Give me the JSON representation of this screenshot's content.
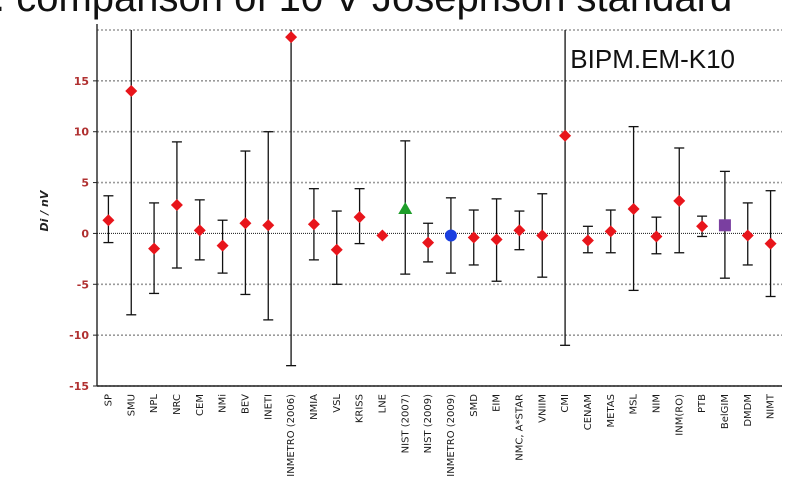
{
  "slide": {
    "title": ". comparison of 10 V Josephson standard"
  },
  "chart_data": {
    "type": "scatter",
    "title": "",
    "annotation": "BIPM.EM-K10",
    "xlabel": "",
    "ylabel": "Di / nV",
    "ylim": [
      -15,
      20
    ],
    "yticks": [
      -15,
      -10,
      -5,
      0,
      5,
      10,
      15
    ],
    "ytick_labels": [
      "-15",
      "-10",
      "-5",
      "0",
      "5",
      "10",
      "15"
    ],
    "grid": true,
    "error_bars": true,
    "categories": [
      "SP",
      "SMU",
      "NPL",
      "NRC",
      "CEM",
      "NMi",
      "BEV",
      "INETI",
      "INMETRO (2006)",
      "NMIA",
      "VSL",
      "KRISS",
      "LNE",
      "NIST (2007)",
      "NIST (2009)",
      "INMETRO (2009)",
      "SMD",
      "EIM",
      "NMC, A*STAR",
      "VNIIM",
      "CMI",
      "CENAM",
      "METAS",
      "MSL",
      "NIM",
      "INM(RO)",
      "PTB",
      "BelGIM",
      "DMDM",
      "NIMT"
    ],
    "values": [
      1.3,
      14.0,
      -1.5,
      2.8,
      0.3,
      -1.2,
      1.0,
      0.8,
      19.3,
      0.9,
      -1.6,
      1.6,
      -0.2,
      2.4,
      -0.9,
      -0.2,
      -0.4,
      -0.6,
      0.3,
      -0.2,
      9.6,
      -0.7,
      0.2,
      2.4,
      -0.3,
      3.2,
      0.7,
      0.8,
      -0.2,
      -1.0
    ],
    "err_low": [
      -0.9,
      -8.0,
      -5.9,
      -3.4,
      -2.6,
      -3.9,
      -6.0,
      -8.5,
      -13.0,
      -2.6,
      -5.0,
      -1.0,
      -0.2,
      -4.0,
      -2.8,
      -3.9,
      -3.1,
      -4.7,
      -1.6,
      -4.3,
      -11.0,
      -1.9,
      -1.9,
      -5.6,
      -2.0,
      -1.9,
      -0.3,
      -4.4,
      -3.1,
      -6.2
    ],
    "err_high": [
      3.7,
      20.0,
      3.0,
      9.0,
      3.3,
      1.3,
      8.1,
      10.0,
      20.0,
      4.4,
      2.2,
      4.4,
      -0.2,
      9.1,
      1.0,
      3.5,
      2.3,
      3.4,
      2.2,
      3.9,
      20.0,
      0.7,
      2.3,
      10.5,
      1.6,
      8.4,
      1.7,
      6.1,
      3.0,
      4.2
    ],
    "markers": [
      "diamond",
      "diamond",
      "diamond",
      "diamond",
      "diamond",
      "diamond",
      "diamond",
      "diamond",
      "diamond",
      "diamond",
      "diamond",
      "diamond",
      "diamond",
      "triangle",
      "diamond",
      "circle",
      "diamond",
      "diamond",
      "diamond",
      "diamond",
      "diamond",
      "diamond",
      "diamond",
      "diamond",
      "diamond",
      "diamond",
      "diamond",
      "square",
      "diamond",
      "diamond"
    ],
    "marker_colors": [
      "#e8151b",
      "#e8151b",
      "#e8151b",
      "#e8151b",
      "#e8151b",
      "#e8151b",
      "#e8151b",
      "#e8151b",
      "#e8151b",
      "#e8151b",
      "#e8151b",
      "#e8151b",
      "#e8151b",
      "#1e9e2a",
      "#e8151b",
      "#1a3fe0",
      "#e8151b",
      "#e8151b",
      "#e8151b",
      "#e8151b",
      "#e8151b",
      "#e8151b",
      "#e8151b",
      "#e8151b",
      "#e8151b",
      "#e8151b",
      "#e8151b",
      "#7a3fa0",
      "#e8151b",
      "#e8151b"
    ],
    "colors": {
      "tick_label": "#b03030",
      "grid": "#9a9a9a",
      "axis": "#222222",
      "error_bar": "#111111"
    }
  }
}
